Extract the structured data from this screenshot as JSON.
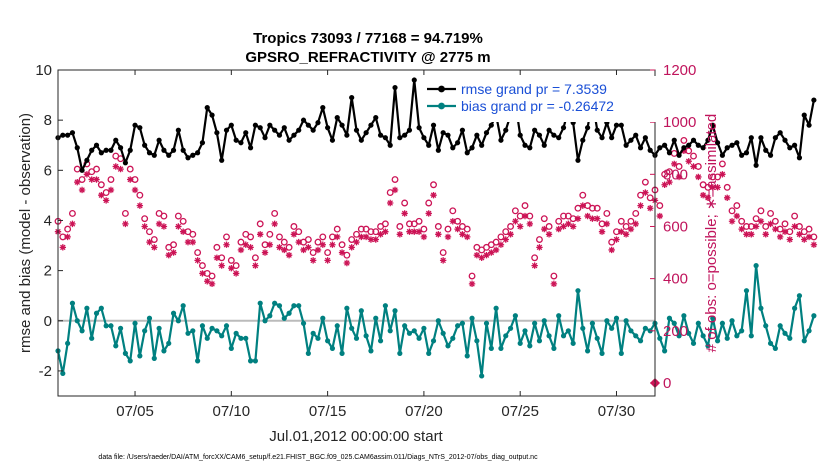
{
  "chart_data": {
    "type": "line",
    "title_line1": "Tropics 73093 / 77168 = 94.719%",
    "title_line2": "GPSRO_REFRACTIVITY @ 2775 m",
    "xlabel": "Jul.01,2012 00:00:00 start",
    "ylabel_left": "rmse and bias (model - observation)",
    "ylabel_right": "# of obs: o=possible; ∗=assimilated",
    "footer": "data file: /Users/raeder/DAI/ATM_forcXX/CAM6_setup/f.e21.FHIST_BGC.f09_025.CAM6assim.011/Diags_NTrS_2012-07/obs_diag_output.nc",
    "xlim": [
      1.0,
      32.0
    ],
    "ylim_left": [
      -3,
      10
    ],
    "ylim_right": [
      -50,
      1200
    ],
    "x_ticks": [
      5,
      10,
      15,
      20,
      25,
      30
    ],
    "x_tick_labels": [
      "07/05",
      "07/10",
      "07/15",
      "07/20",
      "07/25",
      "07/30"
    ],
    "y_left_ticks": [
      -2,
      0,
      2,
      4,
      6,
      8,
      10
    ],
    "y_left_tick_labels": [
      "-2",
      "0",
      "2",
      "4",
      "6",
      "8",
      "10"
    ],
    "y_right_ticks": [
      0,
      200,
      400,
      600,
      800,
      1000,
      1200
    ],
    "y_right_tick_labels": [
      "0",
      "200",
      "400",
      "600",
      "800",
      "1000",
      "1200"
    ],
    "colors": {
      "rmse": "#000000",
      "bias": "#008080",
      "obs": "#cc1456",
      "zero_line": "#bbbbbb"
    },
    "legend": [
      {
        "label": "rmse grand pr = 7.3539",
        "series": "rmse"
      },
      {
        "label": "bias grand pr = -0.26472",
        "series": "bias"
      }
    ],
    "time_start": 1.0,
    "time_step": 0.25,
    "series": [
      {
        "name": "rmse",
        "axis": "left",
        "values": [
          7.3,
          7.4,
          7.4,
          7.5,
          6.9,
          6.0,
          6.4,
          6.8,
          7.0,
          6.7,
          6.8,
          6.8,
          7.2,
          6.9,
          6.3,
          6.8,
          7.8,
          7.7,
          7.0,
          6.7,
          6.6,
          7.2,
          6.8,
          6.6,
          6.8,
          7.6,
          6.8,
          6.5,
          6.6,
          6.7,
          7.1,
          8.5,
          8.2,
          7.5,
          6.4,
          7.6,
          7.8,
          7.2,
          7.1,
          7.5,
          6.9,
          7.8,
          7.7,
          7.3,
          7.8,
          7.6,
          7.4,
          7.7,
          7.2,
          7.4,
          7.6,
          8.0,
          7.8,
          7.6,
          7.9,
          8.5,
          7.7,
          7.2,
          8.1,
          7.8,
          7.4,
          8.9,
          7.6,
          7.2,
          7.5,
          7.8,
          8.1,
          7.4,
          7.3,
          7.0,
          9.3,
          7.3,
          7.4,
          7.6,
          9.6,
          7.7,
          7.3,
          7.0,
          7.8,
          6.8,
          7.5,
          7.4,
          6.9,
          7.1,
          7.6,
          6.7,
          6.9,
          7.4,
          7.0,
          7.5,
          7.8,
          8.2,
          7.2,
          7.6,
          8.2,
          8.7,
          7.4,
          7.0,
          6.9,
          7.6,
          7.4,
          7.0,
          7.6,
          7.4,
          7.3,
          7.7,
          8.4,
          7.9,
          6.4,
          7.2,
          7.7,
          8.8,
          7.6,
          7.3,
          7.9,
          7.3,
          7.8,
          7.8,
          7.0,
          7.2,
          7.4,
          6.9,
          7.3,
          6.8,
          6.6,
          6.9,
          7.0,
          6.7,
          7.2,
          6.6,
          6.9,
          7.0,
          7.2,
          7.0,
          6.9,
          7.2,
          7.8,
          7.1,
          6.6,
          6.9,
          7.0,
          7.1,
          6.6,
          6.7,
          7.3,
          6.2,
          7.3,
          6.8,
          6.6,
          7.3,
          7.5,
          7.2,
          6.9,
          7.0,
          6.5,
          8.2,
          7.8,
          8.8
        ]
      },
      {
        "name": "bias",
        "axis": "left",
        "values": [
          -1.2,
          -2.1,
          -0.9,
          0.7,
          0.0,
          -0.4,
          0.5,
          -0.7,
          0.3,
          0.5,
          -0.2,
          -0.2,
          -1.0,
          -0.3,
          -1.3,
          -1.6,
          -0.1,
          -1.4,
          -0.4,
          0.1,
          -1.5,
          -0.3,
          -1.2,
          -0.9,
          0.3,
          0.0,
          0.6,
          -0.5,
          -0.4,
          -1.6,
          -0.2,
          -0.7,
          -0.3,
          -0.4,
          -0.6,
          -0.2,
          -1.1,
          -0.5,
          -0.7,
          -0.7,
          -1.6,
          -1.6,
          0.7,
          0.0,
          0.2,
          0.7,
          0.6,
          0.1,
          0.3,
          0.6,
          0.6,
          -0.1,
          -1.3,
          -0.5,
          -0.7,
          0.1,
          -0.8,
          -1.1,
          -0.2,
          -1.3,
          0.5,
          -0.3,
          -0.7,
          0.4,
          -0.6,
          -1.2,
          0.1,
          -0.8,
          0.6,
          -0.4,
          0.4,
          -1.3,
          -0.2,
          -0.5,
          -0.4,
          -0.7,
          -0.3,
          -1.3,
          -0.8,
          0.0,
          -0.5,
          -1.0,
          -0.7,
          -0.2,
          -0.1,
          -1.4,
          0.1,
          -0.8,
          -2.2,
          -0.1,
          -1.1,
          0.5,
          -1.1,
          -0.6,
          -0.3,
          0.2,
          -0.9,
          -0.4,
          -1.0,
          -0.1,
          -0.8,
          0.0,
          -0.6,
          -1.1,
          0.2,
          -0.6,
          -0.4,
          -0.9,
          1.2,
          -0.3,
          -1.2,
          -0.1,
          -0.7,
          -1.3,
          0.0,
          -0.3,
          0.1,
          -1.3,
          0.0,
          -0.4,
          -0.6,
          -0.8,
          -0.3,
          -0.4,
          -0.1,
          -0.7,
          -1.2,
          0.1,
          -0.1,
          -0.6,
          0.2,
          -0.5,
          -0.9,
          -0.1,
          -0.6,
          -1.0,
          0.1,
          -0.8,
          -0.1,
          -0.7,
          0.0,
          -0.6,
          -0.4,
          1.2,
          -0.6,
          2.2,
          0.5,
          -0.2,
          -0.9,
          -1.1,
          -0.2,
          -0.5,
          -0.7,
          0.5,
          1.0,
          -0.8,
          -0.4,
          0.2
        ]
      },
      {
        "name": "possible",
        "axis": "right",
        "values": [
          620,
          560,
          590,
          650,
          820,
          780,
          840,
          810,
          820,
          760,
          730,
          780,
          870,
          860,
          650,
          820,
          780,
          720,
          630,
          580,
          550,
          650,
          640,
          520,
          530,
          640,
          620,
          580,
          570,
          500,
          450,
          420,
          410,
          520,
          480,
          560,
          470,
          450,
          540,
          570,
          560,
          480,
          610,
          530,
          570,
          650,
          560,
          540,
          520,
          600,
          580,
          540,
          550,
          500,
          540,
          560,
          500,
          560,
          590,
          530,
          490,
          550,
          570,
          590,
          590,
          580,
          580,
          600,
          610,
          730,
          780,
          600,
          690,
          610,
          610,
          620,
          590,
          690,
          760,
          600,
          500,
          590,
          660,
          620,
          600,
          590,
          410,
          520,
          510,
          520,
          530,
          540,
          560,
          580,
          600,
          660,
          640,
          680,
          640,
          480,
          550,
          630,
          600,
          410,
          620,
          640,
          640,
          630,
          670,
          720,
          680,
          670,
          670,
          610,
          650,
          540,
          580,
          620,
          600,
          620,
          650,
          720,
          770,
          710,
          740,
          680,
          800,
          810,
          880,
          830,
          930,
          890,
          870,
          830,
          760,
          750,
          790,
          790,
          840,
          750,
          660,
          680,
          620,
          600,
          600,
          630,
          660,
          600,
          650,
          620,
          590,
          610,
          580,
          640,
          600,
          580,
          590,
          560
        ]
      },
      {
        "name": "assimilated",
        "axis": "right",
        "values": [
          580,
          520,
          560,
          610,
          770,
          740,
          800,
          780,
          780,
          720,
          700,
          740,
          830,
          820,
          610,
          780,
          740,
          680,
          600,
          540,
          520,
          610,
          600,
          490,
          500,
          600,
          580,
          540,
          540,
          470,
          420,
          390,
          380,
          480,
          450,
          530,
          440,
          420,
          510,
          530,
          520,
          450,
          570,
          500,
          530,
          610,
          520,
          510,
          490,
          570,
          540,
          510,
          520,
          470,
          510,
          530,
          470,
          530,
          560,
          500,
          460,
          520,
          540,
          560,
          560,
          550,
          550,
          570,
          580,
          690,
          740,
          570,
          650,
          580,
          580,
          580,
          560,
          650,
          720,
          570,
          470,
          560,
          620,
          590,
          570,
          560,
          380,
          490,
          480,
          490,
          500,
          510,
          530,
          550,
          570,
          620,
          600,
          640,
          610,
          450,
          520,
          590,
          570,
          380,
          590,
          600,
          610,
          600,
          630,
          680,
          640,
          630,
          630,
          580,
          610,
          510,
          550,
          580,
          570,
          590,
          610,
          680,
          730,
          670,
          700,
          640,
          760,
          770,
          840,
          790,
          890,
          850,
          830,
          790,
          720,
          710,
          750,
          750,
          800,
          710,
          620,
          640,
          590,
          570,
          570,
          600,
          620,
          570,
          610,
          590,
          560,
          580,
          550,
          600,
          570,
          550,
          560,
          530
        ]
      }
    ]
  }
}
